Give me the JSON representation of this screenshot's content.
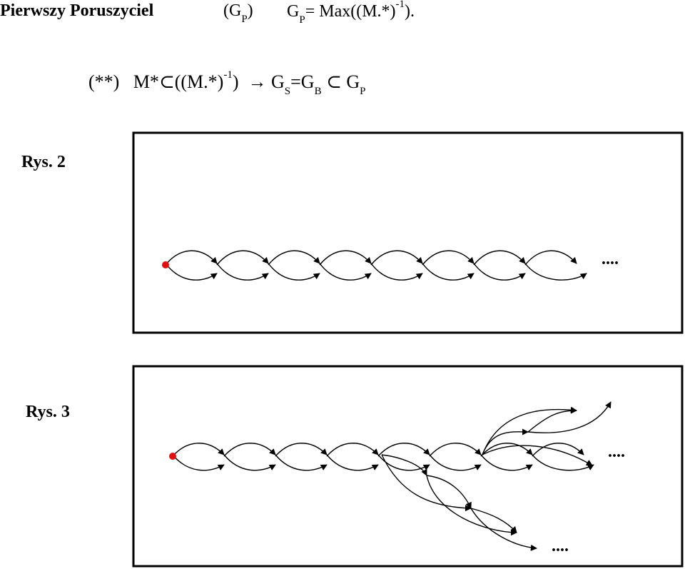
{
  "header": {
    "title": "Pierwszy Poruszyciel",
    "gp_open": "(G",
    "gp_sub": "P",
    "gp_close": ")",
    "eq_g": "G",
    "eq_g_sub": "P",
    "eq_rest": "= Max((M.*)",
    "eq_sup": "-1",
    "eq_end": ")."
  },
  "formula2": {
    "lead": "(**)   M*",
    "subset1": "⊂",
    "inner": "((M.*)",
    "inner_sup": "-1",
    "inner_close": ")",
    "arrow": "→",
    "gs": "G",
    "gs_sub": "S",
    "eq": "=G",
    "gb_sub": "B",
    "subset2": "⊂",
    "gp": "G",
    "gp_sub": "P"
  },
  "figure2": {
    "label": "Rys. 2",
    "ellipsis": "...."
  },
  "figure3": {
    "label": "Rys. 3",
    "ellipsis_main": "....",
    "ellipsis_branch": "...."
  },
  "colors": {
    "start_node": "#e01010",
    "stroke": "#000000"
  }
}
